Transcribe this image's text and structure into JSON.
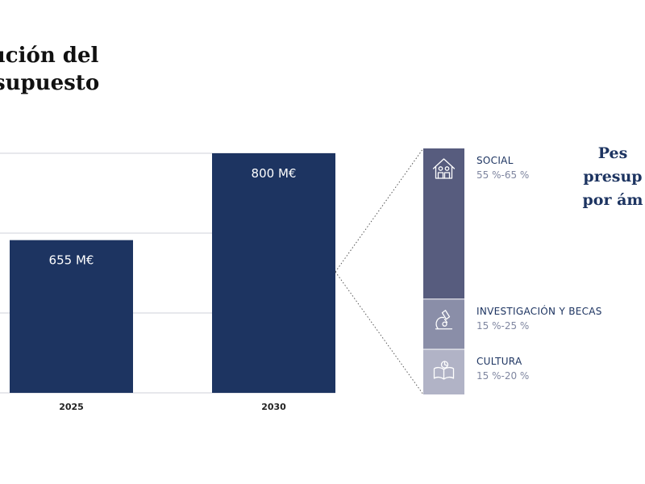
{
  "title": {
    "line1": "lución del",
    "line2": "supuesto"
  },
  "side_title": {
    "line1": "Pes",
    "line2": "presup",
    "line3": "por ám"
  },
  "colors": {
    "bar": "#1d3461",
    "grid": "#cfd2d8",
    "social": "#575c7e",
    "investigacion": "#8a8ea8",
    "cultura": "#b1b3c6",
    "icon": "#ffffff",
    "connector": "#555555"
  },
  "chart_data": [
    {
      "type": "bar",
      "categories": [
        "2025",
        "2030"
      ],
      "values": [
        655,
        800
      ],
      "data_labels": [
        "655 M€",
        "800 M€"
      ],
      "title": "",
      "xlabel": "",
      "ylabel": "",
      "ylim": [
        400,
        800
      ],
      "grid": true
    },
    {
      "type": "bar",
      "stacked": true,
      "series": [
        {
          "name": "SOCIAL",
          "range_label": "55 %-65 %",
          "value": 0.6,
          "icon": "house-people-icon"
        },
        {
          "name": "INVESTIGACIÓN Y BECAS",
          "range_label": "15 %-25 %",
          "value": 0.2,
          "icon": "microscope-icon"
        },
        {
          "name": "CULTURA",
          "range_label": "15 %-20 %",
          "value": 0.18,
          "icon": "book-icon"
        }
      ],
      "legend": "right"
    }
  ]
}
